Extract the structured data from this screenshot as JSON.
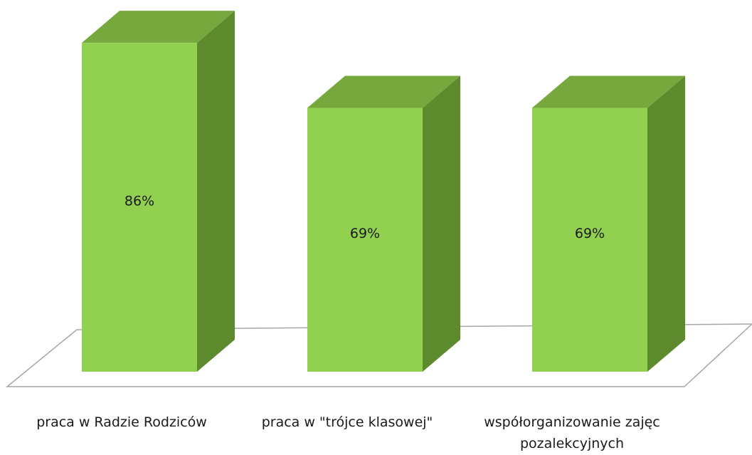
{
  "chart_data": {
    "type": "bar3d",
    "categories": [
      "praca w Radzie Rodziców",
      "praca w \"trójce klasowej\"",
      "współorganizowanie zajęc pozalekcyjnych"
    ],
    "values": [
      86,
      69,
      69
    ],
    "value_labels": [
      "86%",
      "69%",
      "69%"
    ],
    "color": "#92d050",
    "ylim": [
      0,
      100
    ]
  }
}
